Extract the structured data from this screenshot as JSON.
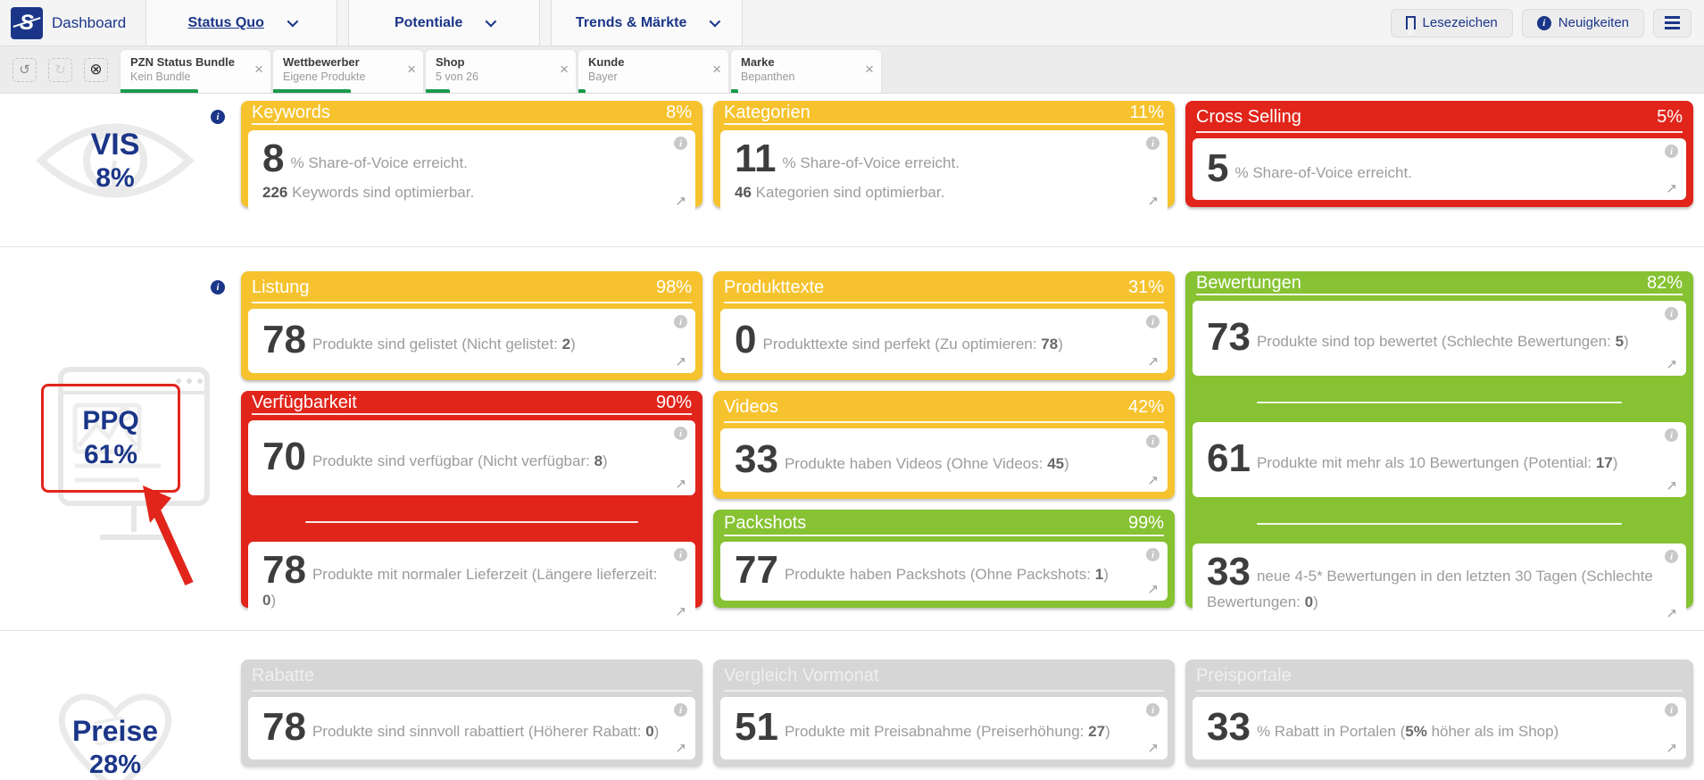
{
  "colors": {
    "navy": "#1b3688",
    "yellow": "#f6c32f",
    "red": "#e1251b",
    "green": "#86c232",
    "gray_card": "#d6d6d6",
    "chip_progress_green": "#189a4c"
  },
  "icons": {
    "info": "i",
    "close": "×",
    "undo": "↺",
    "redo": "↻",
    "clear_filters": "⊗",
    "external_link": "↗"
  },
  "header": {
    "logo": "S",
    "title": "Dashboard",
    "nav": [
      {
        "label": "Status Quo",
        "active": true
      },
      {
        "label": "Potentiale",
        "active": false
      },
      {
        "label": "Trends & Märkte",
        "active": false
      }
    ],
    "bookmark_label": "Lesezeichen",
    "news_label": "Neuigkeiten"
  },
  "filters": {
    "chips": [
      {
        "title": "PZN Status Bundle",
        "value": "Kein Bundle",
        "bar": "52%"
      },
      {
        "title": "Wettbewerber",
        "value": "Eigene Produkte",
        "bar": "52%"
      },
      {
        "title": "Shop",
        "value": "5 von 26",
        "bar": "16%"
      },
      {
        "title": "Kunde",
        "value": "Bayer",
        "bar": "5%"
      },
      {
        "title": "Marke",
        "value": "Bepanthen",
        "bar": "5%"
      }
    ]
  },
  "sections": {
    "vis": {
      "label": "VIS",
      "pct": "8%"
    },
    "ppq": {
      "label": "PPQ",
      "pct": "61%"
    },
    "preise": {
      "label": "Preise",
      "pct": "28%"
    }
  },
  "cards": {
    "keywords": {
      "title": "Keywords",
      "pct": "8%",
      "big": "8",
      "text": "% Share-of-Voice erreicht.",
      "line2_strong": "226",
      "line2_text": " Keywords sind optimierbar."
    },
    "kategorien": {
      "title": "Kategorien",
      "pct": "11%",
      "big": "11",
      "text": "% Share-of-Voice erreicht.",
      "line2_strong": "46",
      "line2_text": " Kategorien sind optimierbar."
    },
    "cross_selling": {
      "title": "Cross Selling",
      "pct": "5%",
      "big": "5",
      "text": "% Share-of-Voice erreicht."
    },
    "listung": {
      "title": "Listung",
      "pct": "98%",
      "big": "78",
      "pre": "Produkte sind gelistet (Nicht gelistet: ",
      "strong": "2",
      "tail": ")"
    },
    "produkttexte": {
      "title": "Produkttexte",
      "pct": "31%",
      "big": "0",
      "pre": "Produkttexte sind perfekt (Zu optimieren: ",
      "strong": "78",
      "tail": ")"
    },
    "bewertungen": {
      "title": "Bewertungen",
      "pct": "82%",
      "stats": [
        {
          "big": "73",
          "pre": "Produkte sind top bewertet (Schlechte Bewertungen: ",
          "strong": "5",
          "tail": ")"
        },
        {
          "big": "61",
          "pre": "Produkte mit mehr als 10 Bewertungen (Potential: ",
          "strong": "17",
          "tail": ")"
        },
        {
          "big": "33",
          "pre": "neue 4-5* Bewertungen in den letzten 30 Tagen (Schlechte Bewertungen: ",
          "strong": "0",
          "tail": ")"
        }
      ]
    },
    "verfuegbarkeit": {
      "title": "Verfügbarkeit",
      "pct": "90%",
      "stats": [
        {
          "big": "70",
          "pre": "Produkte sind verfügbar (Nicht verfügbar: ",
          "strong": "8",
          "tail": ")"
        },
        {
          "big": "78",
          "pre": "Produkte mit normaler Lieferzeit (Längere lieferzeit: ",
          "strong": "0",
          "tail": ")"
        }
      ]
    },
    "videos": {
      "title": "Videos",
      "pct": "42%",
      "big": "33",
      "pre": "Produkte haben Videos (Ohne Videos: ",
      "strong": "45",
      "tail": ")"
    },
    "packshots": {
      "title": "Packshots",
      "pct": "99%",
      "big": "77",
      "pre": "Produkte haben Packshots (Ohne Packshots: ",
      "strong": "1",
      "tail": ")"
    },
    "rabatte": {
      "title": "Rabatte",
      "big": "78",
      "pre": "Produkte sind sinnvoll rabattiert (Höherer Rabatt: ",
      "strong": "0",
      "tail": ")"
    },
    "vergleich_vormonat": {
      "title": "Vergleich Vormonat",
      "big": "51",
      "pre": "Produkte mit Preisabnahme (Preiserhöhung: ",
      "strong": "27",
      "tail": ")"
    },
    "preisportale": {
      "title": "Preisportale",
      "big": "33",
      "pre": "% Rabatt in Portalen (",
      "strong": "5%",
      "tail": " höher als im Shop)"
    }
  }
}
